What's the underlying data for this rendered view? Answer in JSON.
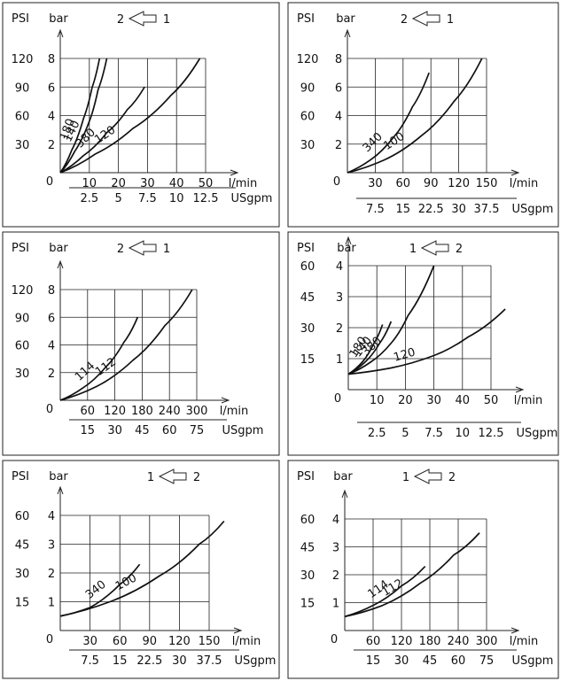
{
  "chart_data": [
    {
      "type": "line",
      "y_label": "PSI",
      "y2_label": "bar",
      "psi_ticks": [
        "120",
        "90",
        "60",
        "30"
      ],
      "bar_ticks": [
        "8",
        "6",
        "4",
        "2"
      ],
      "x_ticks": [
        "10",
        "20",
        "30",
        "40",
        "50"
      ],
      "x_unit": "l/min",
      "x2_ticks": [
        "2.5",
        "5",
        "7.5",
        "10",
        "12.5"
      ],
      "x2_unit": "USgpm",
      "origin": "0",
      "xlim": [
        0,
        50
      ],
      "ylim": [
        0,
        8
      ],
      "flow": {
        "left": "2",
        "right": "1",
        "dir": "left"
      },
      "series": [
        {
          "name": "180",
          "x": [
            0,
            4,
            8,
            11,
            13.5
          ],
          "y": [
            0,
            1.6,
            3.8,
            6.0,
            8.0
          ]
        },
        {
          "name": "140",
          "x": [
            0,
            5,
            10,
            13,
            16
          ],
          "y": [
            0,
            1.5,
            3.6,
            5.8,
            8.0
          ]
        },
        {
          "name": "380",
          "x": [
            0,
            8,
            16,
            23,
            29
          ],
          "y": [
            0,
            1.2,
            2.8,
            4.4,
            6.0
          ]
        },
        {
          "name": "120",
          "x": [
            0,
            12,
            25,
            38,
            48
          ],
          "y": [
            0,
            1.3,
            3.1,
            5.4,
            8.0
          ]
        }
      ]
    },
    {
      "type": "line",
      "y_label": "PSI",
      "y2_label": "bar",
      "psi_ticks": [
        "120",
        "90",
        "60",
        "30"
      ],
      "bar_ticks": [
        "8",
        "6",
        "4",
        "2"
      ],
      "x_ticks": [
        "30",
        "60",
        "90",
        "120",
        "150"
      ],
      "x_unit": "l/min",
      "x2_ticks": [
        "7.5",
        "15",
        "22.5",
        "30",
        "37.5"
      ],
      "x2_unit": "USgpm",
      "origin": "0",
      "xlim": [
        0,
        150
      ],
      "ylim": [
        0,
        8
      ],
      "flow": {
        "left": "2",
        "right": "1",
        "dir": "left"
      },
      "series": [
        {
          "name": "340",
          "x": [
            0,
            25,
            50,
            70,
            88
          ],
          "y": [
            0,
            0.9,
            2.5,
            4.6,
            7.0
          ]
        },
        {
          "name": "100",
          "x": [
            0,
            40,
            80,
            115,
            145
          ],
          "y": [
            0,
            0.9,
            2.6,
            5.0,
            8.0
          ]
        }
      ]
    },
    {
      "type": "line",
      "y_label": "PSI",
      "y2_label": "bar",
      "psi_ticks": [
        "120",
        "90",
        "60",
        "30"
      ],
      "bar_ticks": [
        "8",
        "6",
        "4",
        "2"
      ],
      "x_ticks": [
        "60",
        "120",
        "180",
        "240",
        "300"
      ],
      "x_unit": "l/min",
      "x2_ticks": [
        "15",
        "30",
        "45",
        "60",
        "75"
      ],
      "x2_unit": "USgpm",
      "origin": "0",
      "xlim": [
        0,
        300
      ],
      "ylim": [
        0,
        8
      ],
      "flow": {
        "left": "2",
        "right": "1",
        "dir": "left"
      },
      "series": [
        {
          "name": "114",
          "x": [
            0,
            50,
            100,
            140,
            170
          ],
          "y": [
            0,
            0.9,
            2.4,
            4.2,
            6.0
          ]
        },
        {
          "name": "112",
          "x": [
            0,
            80,
            160,
            230,
            290
          ],
          "y": [
            0,
            1.0,
            2.9,
            5.4,
            8.0
          ]
        }
      ]
    },
    {
      "type": "line",
      "y_label": "PSI",
      "y2_label": "bar",
      "psi_ticks": [
        "60",
        "45",
        "30",
        "15"
      ],
      "bar_ticks": [
        "4",
        "3",
        "2",
        "1"
      ],
      "x_ticks": [
        "10",
        "20",
        "30",
        "40",
        "50"
      ],
      "x_unit": "l/min",
      "x2_ticks": [
        "2.5",
        "5",
        "7.5",
        "10",
        "12.5"
      ],
      "x2_unit": "USgpm",
      "origin": "0",
      "xlim": [
        0,
        50
      ],
      "ylim": [
        0,
        4
      ],
      "flow": {
        "left": "1",
        "right": "2",
        "dir": "left"
      },
      "series": [
        {
          "name": "180",
          "x": [
            0,
            5,
            9,
            12
          ],
          "y": [
            0.5,
            0.9,
            1.5,
            2.1
          ]
        },
        {
          "name": "140",
          "x": [
            0,
            6,
            11,
            15
          ],
          "y": [
            0.5,
            0.9,
            1.5,
            2.2
          ]
        },
        {
          "name": "380",
          "x": [
            0,
            8,
            15,
            21,
            30
          ],
          "y": [
            0.5,
            0.9,
            1.5,
            2.4,
            4.0
          ]
        },
        {
          "name": "120",
          "x": [
            0,
            15,
            30,
            42,
            55
          ],
          "y": [
            0.5,
            0.7,
            1.1,
            1.7,
            2.6
          ]
        }
      ]
    },
    {
      "type": "line",
      "y_label": "PSI",
      "y2_label": "bar",
      "psi_ticks": [
        "60",
        "45",
        "30",
        "15"
      ],
      "bar_ticks": [
        "4",
        "3",
        "2",
        "1"
      ],
      "x_ticks": [
        "30",
        "60",
        "90",
        "120",
        "150"
      ],
      "x_unit": "l/min",
      "x2_ticks": [
        "7.5",
        "15",
        "22.5",
        "30",
        "37.5"
      ],
      "x2_unit": "USgpm",
      "origin": "0",
      "xlim": [
        0,
        150
      ],
      "ylim": [
        0,
        4
      ],
      "flow": {
        "left": "1",
        "right": "2",
        "dir": "left"
      },
      "series": [
        {
          "name": "340",
          "x": [
            0,
            30,
            60,
            80
          ],
          "y": [
            0.5,
            0.8,
            1.6,
            2.3
          ]
        },
        {
          "name": "100",
          "x": [
            0,
            50,
            100,
            140,
            165
          ],
          "y": [
            0.5,
            1.0,
            1.9,
            3.0,
            3.8
          ]
        }
      ]
    },
    {
      "type": "line",
      "y_label": "PSI",
      "y2_label": "bar",
      "psi_ticks": [
        "60",
        "45",
        "30",
        "15"
      ],
      "bar_ticks": [
        "4",
        "3",
        "2",
        "1"
      ],
      "x_ticks": [
        "60",
        "120",
        "180",
        "240",
        "300"
      ],
      "x_unit": "l/min",
      "x2_ticks": [
        "15",
        "30",
        "45",
        "60",
        "75"
      ],
      "x2_unit": "USgpm",
      "origin": "0",
      "xlim": [
        0,
        300
      ],
      "ylim": [
        0,
        4
      ],
      "flow": {
        "left": "1",
        "right": "2",
        "dir": "left"
      },
      "series": [
        {
          "name": "114",
          "x": [
            0,
            60,
            120,
            170
          ],
          "y": [
            0.5,
            0.9,
            1.6,
            2.3
          ]
        },
        {
          "name": "112",
          "x": [
            0,
            80,
            160,
            230,
            285
          ],
          "y": [
            0.5,
            0.9,
            1.7,
            2.7,
            3.5
          ]
        }
      ]
    }
  ]
}
